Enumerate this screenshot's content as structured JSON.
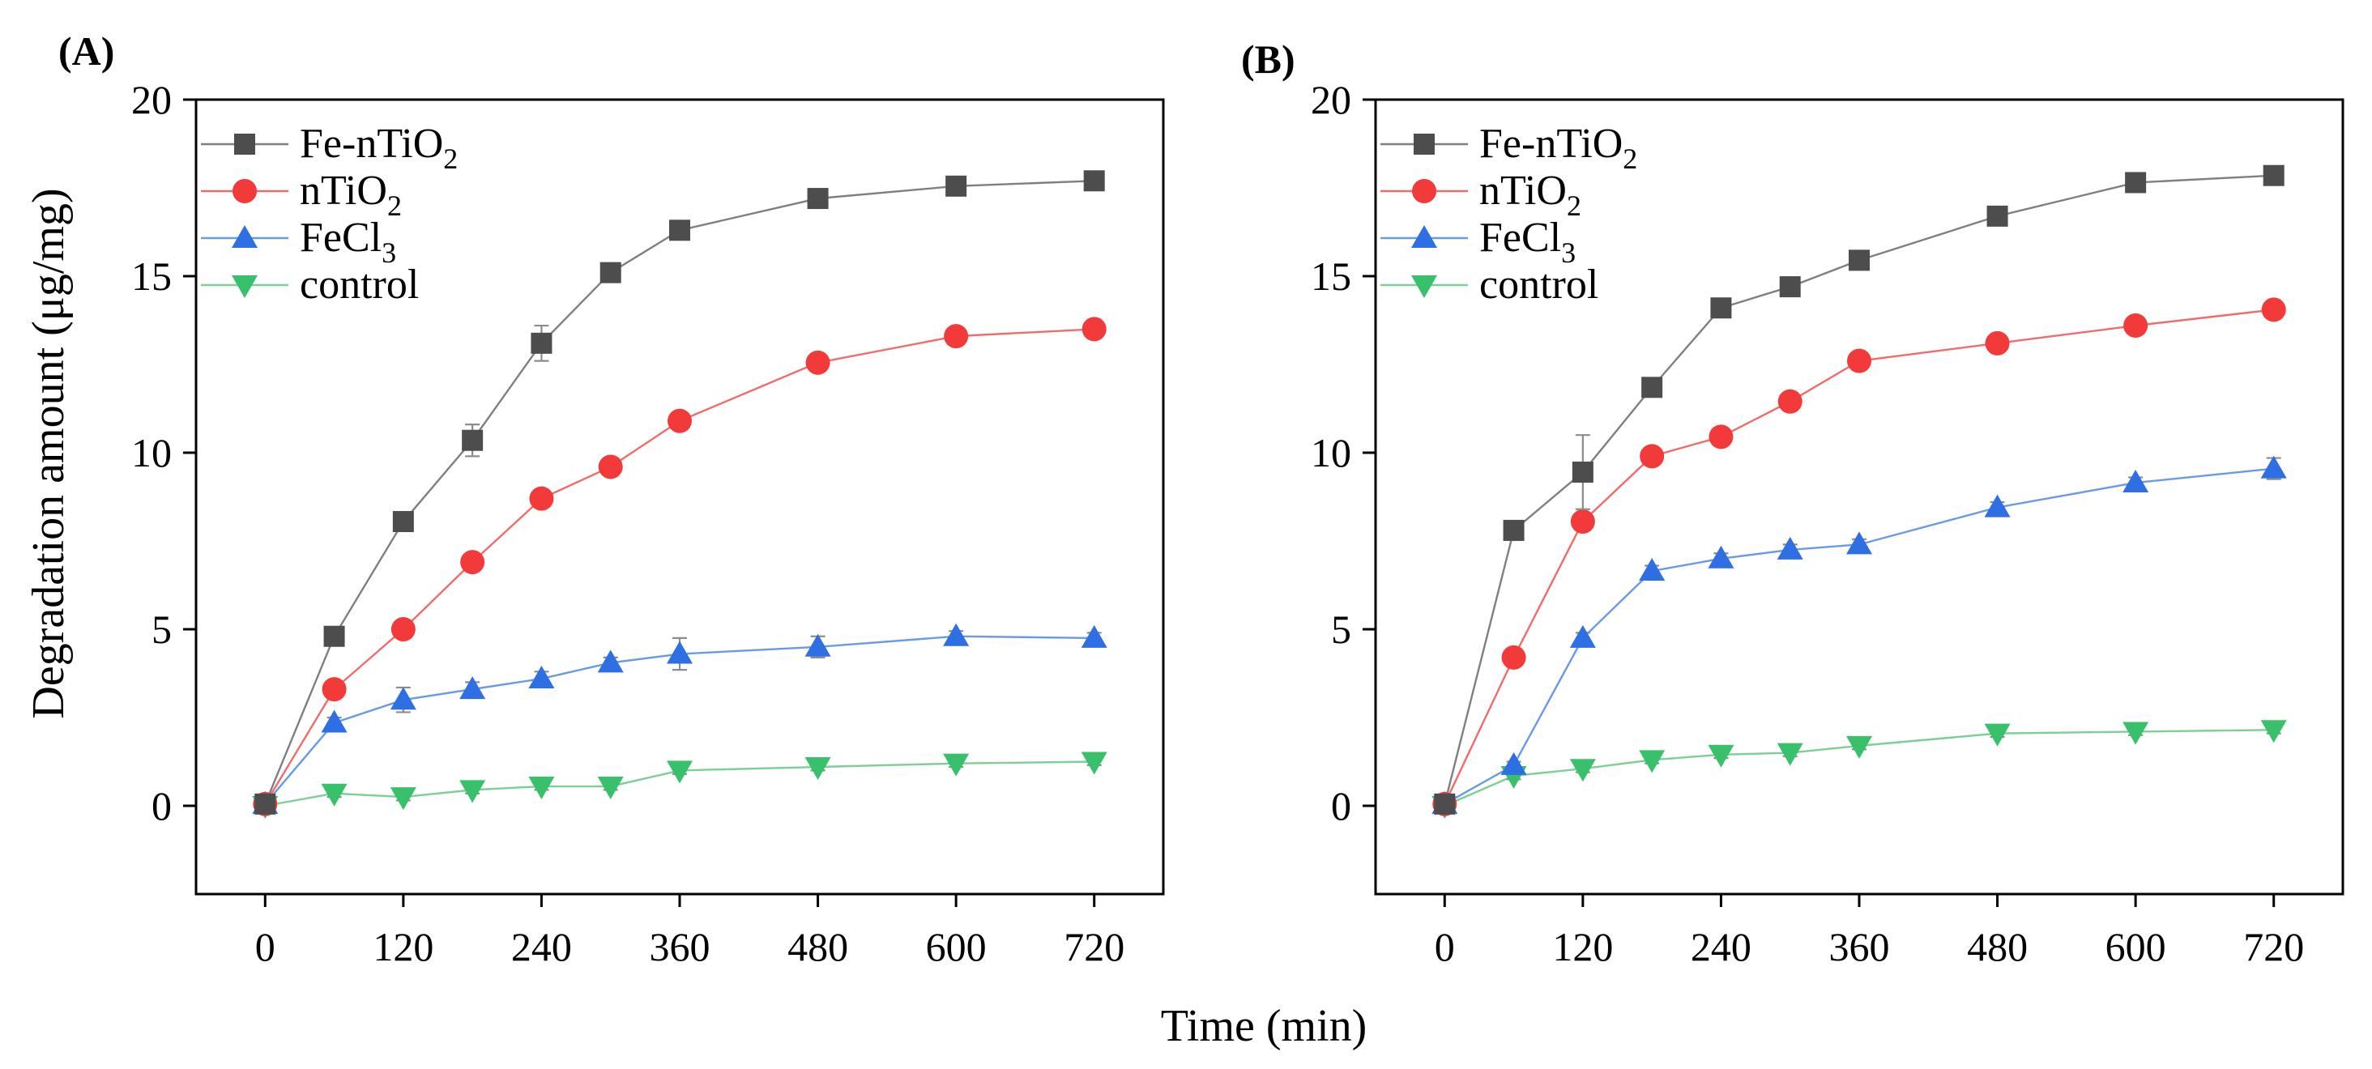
{
  "figure": {
    "xlabel": "Time (min)",
    "ylabel": "Degradation amount (μg/mg)"
  },
  "chart_data": [
    {
      "type": "line",
      "panel_label": "(A)",
      "title": "",
      "xlabel": "Time (min)",
      "ylabel": "Degradation amount (μg/mg)",
      "xlim": [
        -60,
        780
      ],
      "ylim": [
        -2.5,
        20
      ],
      "xticks": [
        0,
        120,
        240,
        360,
        480,
        600,
        720
      ],
      "yticks": [
        0,
        5,
        10,
        15,
        20
      ],
      "x": [
        0,
        60,
        120,
        180,
        240,
        300,
        360,
        480,
        600,
        720
      ],
      "legend_position": "top-left",
      "series": [
        {
          "name": "Fe-nTiO",
          "sub": "2",
          "marker": "square",
          "color": "#4d4d4d",
          "line_color": "#7f7f7f",
          "values": [
            0.05,
            4.8,
            8.05,
            10.35,
            13.1,
            15.1,
            16.3,
            17.2,
            17.55,
            17.7
          ],
          "errors": [
            0,
            0.15,
            0.2,
            0.45,
            0.5,
            0.2,
            0.2,
            0.15,
            0.15,
            0.15
          ]
        },
        {
          "name": "nTiO",
          "sub": "2",
          "marker": "circle",
          "color": "#f23a3a",
          "line_color": "#f26b6b",
          "values": [
            0.05,
            3.3,
            5.0,
            6.9,
            8.7,
            9.6,
            10.9,
            12.55,
            13.3,
            13.5
          ],
          "errors": [
            0,
            0.15,
            0.15,
            0.15,
            0.15,
            0.15,
            0.15,
            0.15,
            0.15,
            0.15
          ]
        },
        {
          "name": "FeCl",
          "sub": "3",
          "marker": "triangle-up",
          "color": "#2e6fe3",
          "line_color": "#6a9ae6",
          "values": [
            0.05,
            2.35,
            3.0,
            3.3,
            3.6,
            4.05,
            4.3,
            4.5,
            4.8,
            4.75
          ],
          "errors": [
            0,
            0.15,
            0.35,
            0.2,
            0.2,
            0.15,
            0.45,
            0.3,
            0.15,
            0.15
          ]
        },
        {
          "name": "control",
          "sub": "",
          "marker": "triangle-down",
          "color": "#38c06a",
          "line_color": "#7ccf95",
          "values": [
            0.0,
            0.35,
            0.25,
            0.45,
            0.55,
            0.55,
            1.0,
            1.1,
            1.2,
            1.25
          ],
          "errors": [
            0,
            0.1,
            0.1,
            0.1,
            0.1,
            0.1,
            0.1,
            0.1,
            0.1,
            0.1
          ]
        }
      ]
    },
    {
      "type": "line",
      "panel_label": "(B)",
      "title": "",
      "xlabel": "Time (min)",
      "ylabel": "",
      "xlim": [
        -60,
        780
      ],
      "ylim": [
        -2.5,
        20
      ],
      "xticks": [
        0,
        120,
        240,
        360,
        480,
        600,
        720
      ],
      "yticks": [
        0,
        5,
        10,
        15,
        20
      ],
      "x": [
        0,
        60,
        120,
        180,
        240,
        300,
        360,
        480,
        600,
        720
      ],
      "legend_position": "top-left",
      "series": [
        {
          "name": "Fe-nTiO",
          "sub": "2",
          "marker": "square",
          "color": "#4d4d4d",
          "line_color": "#7f7f7f",
          "values": [
            0.05,
            7.8,
            9.45,
            11.85,
            14.1,
            14.7,
            15.45,
            16.7,
            17.65,
            17.85
          ],
          "errors": [
            0,
            0.15,
            1.05,
            0.2,
            0.2,
            0.2,
            0.2,
            0.2,
            0.15,
            0.15
          ]
        },
        {
          "name": "nTiO",
          "sub": "2",
          "marker": "circle",
          "color": "#f23a3a",
          "line_color": "#f26b6b",
          "values": [
            0.05,
            4.2,
            8.05,
            9.9,
            10.45,
            11.45,
            12.6,
            13.1,
            13.6,
            14.05
          ],
          "errors": [
            0,
            0.15,
            0.15,
            0.15,
            0.15,
            0.15,
            0.15,
            0.15,
            0.15,
            0.15
          ]
        },
        {
          "name": "FeCl",
          "sub": "3",
          "marker": "triangle-up",
          "color": "#2e6fe3",
          "line_color": "#6a9ae6",
          "values": [
            0.05,
            1.15,
            4.75,
            6.65,
            7.0,
            7.25,
            7.4,
            8.45,
            9.15,
            9.55
          ],
          "errors": [
            0,
            0.1,
            0.15,
            0.15,
            0.15,
            0.15,
            0.15,
            0.15,
            0.15,
            0.3
          ]
        },
        {
          "name": "control",
          "sub": "",
          "marker": "triangle-down",
          "color": "#38c06a",
          "line_color": "#7ccf95",
          "values": [
            0.0,
            0.85,
            1.05,
            1.3,
            1.45,
            1.5,
            1.7,
            2.05,
            2.1,
            2.15
          ],
          "errors": [
            0,
            0.1,
            0.1,
            0.1,
            0.1,
            0.1,
            0.1,
            0.1,
            0.1,
            0.1
          ]
        }
      ]
    }
  ]
}
